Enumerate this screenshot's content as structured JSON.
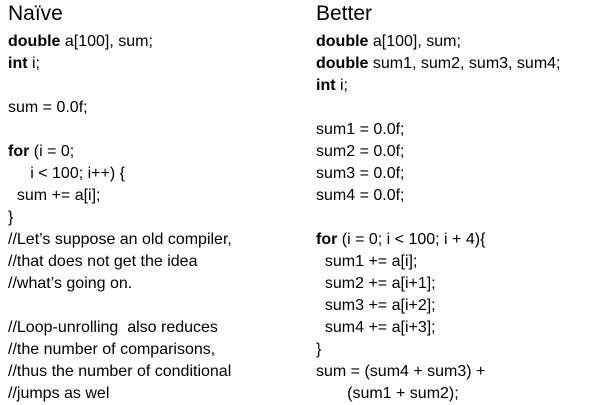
{
  "naive": {
    "title": "Naïve",
    "lines": [
      {
        "kw": "double",
        "text": " a[100], sum;"
      },
      {
        "kw": "int",
        "text": " i;"
      },
      {
        "kw": "",
        "text": ""
      },
      {
        "kw": "",
        "text": "sum = 0.0f;"
      },
      {
        "kw": "",
        "text": ""
      },
      {
        "kw": "for",
        "text": " (i = 0;"
      },
      {
        "kw": "",
        "text": "     i < 100; i++) {"
      },
      {
        "kw": "",
        "text": "  sum += a[i];"
      },
      {
        "kw": "",
        "text": "}"
      },
      {
        "kw": "",
        "text": "//Let’s suppose an old compiler,"
      },
      {
        "kw": "",
        "text": "//that does not get the idea"
      },
      {
        "kw": "",
        "text": "//what’s going on."
      },
      {
        "kw": "",
        "text": ""
      },
      {
        "kw": "",
        "text": "//Loop-unrolling  also reduces"
      },
      {
        "kw": "",
        "text": "//the number of comparisons,"
      },
      {
        "kw": "",
        "text": "//thus the number of conditional"
      },
      {
        "kw": "",
        "text": "//jumps as wel"
      }
    ]
  },
  "better": {
    "title": "Better",
    "lines": [
      {
        "kw": "double",
        "text": " a[100], sum;"
      },
      {
        "kw": "double",
        "text": " sum1, sum2, sum3, sum4;"
      },
      {
        "kw": "int",
        "text": " i;"
      },
      {
        "kw": "",
        "text": ""
      },
      {
        "kw": "",
        "text": "sum1 = 0.0f;"
      },
      {
        "kw": "",
        "text": "sum2 = 0.0f;"
      },
      {
        "kw": "",
        "text": "sum3 = 0.0f;"
      },
      {
        "kw": "",
        "text": "sum4 = 0.0f;"
      },
      {
        "kw": "",
        "text": ""
      },
      {
        "kw": "for",
        "text": " (i = 0; i < 100; i + 4){"
      },
      {
        "kw": "",
        "text": "  sum1 += a[i];"
      },
      {
        "kw": "",
        "text": "  sum2 += a[i+1];"
      },
      {
        "kw": "",
        "text": "  sum3 += a[i+2];"
      },
      {
        "kw": "",
        "text": "  sum4 += a[i+3];"
      },
      {
        "kw": "",
        "text": "}"
      },
      {
        "kw": "",
        "text": "sum = (sum4 + sum3) +"
      },
      {
        "kw": "",
        "text": "       (sum1 + sum2);"
      }
    ]
  }
}
